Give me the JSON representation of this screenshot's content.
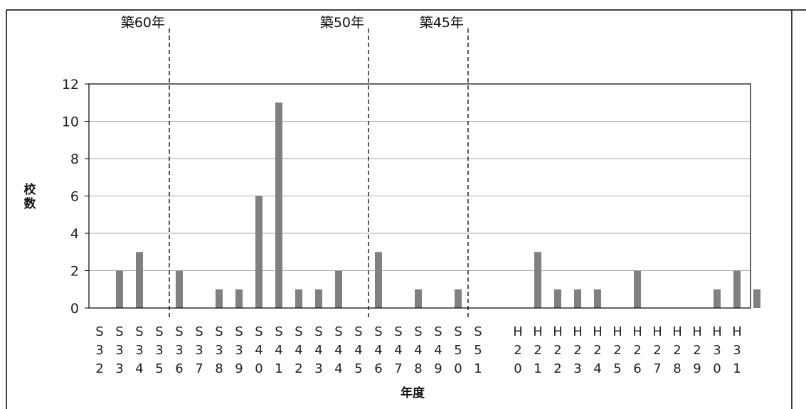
{
  "chart_data": {
    "type": "bar",
    "xlabel": "年度",
    "ylabel": "校数",
    "ylim": [
      0,
      12
    ],
    "yticks": [
      0,
      2,
      4,
      6,
      8,
      10,
      12
    ],
    "grid": true,
    "bar_color": "#808080",
    "categories": [
      [
        "S",
        "3",
        "2"
      ],
      [
        "S",
        "3",
        "3"
      ],
      [
        "S",
        "3",
        "4"
      ],
      [
        "S",
        "3",
        "5"
      ],
      [
        "S",
        "3",
        "6"
      ],
      [
        "S",
        "3",
        "7"
      ],
      [
        "S",
        "3",
        "8"
      ],
      [
        "S",
        "3",
        "9"
      ],
      [
        "S",
        "4",
        "0"
      ],
      [
        "S",
        "4",
        "1"
      ],
      [
        "S",
        "4",
        "2"
      ],
      [
        "S",
        "4",
        "3"
      ],
      [
        "S",
        "4",
        "4"
      ],
      [
        "S",
        "4",
        "5"
      ],
      [
        "S",
        "4",
        "6"
      ],
      [
        "S",
        "4",
        "7"
      ],
      [
        "S",
        "4",
        "8"
      ],
      [
        "S",
        "4",
        "9"
      ],
      [
        "S",
        "5",
        "0"
      ],
      [
        "S",
        "5",
        "1"
      ],
      null,
      [
        "H",
        "2",
        "0"
      ],
      [
        "H",
        "2",
        "1"
      ],
      [
        "H",
        "2",
        "2"
      ],
      [
        "H",
        "2",
        "3"
      ],
      [
        "H",
        "2",
        "4"
      ],
      [
        "H",
        "2",
        "5"
      ],
      [
        "H",
        "2",
        "6"
      ],
      [
        "H",
        "2",
        "7"
      ],
      [
        "H",
        "2",
        "8"
      ],
      [
        "H",
        "2",
        "9"
      ],
      [
        "H",
        "3",
        "0"
      ],
      [
        "H",
        "3",
        "1"
      ]
    ],
    "values": [
      2,
      3,
      0,
      2,
      0,
      1,
      1,
      6,
      11,
      1,
      1,
      2,
      0,
      3,
      0,
      1,
      0,
      1,
      0,
      null,
      null,
      3,
      1,
      1,
      1,
      0,
      2,
      0,
      0,
      0,
      1,
      2,
      1
    ],
    "annotations": [
      {
        "label": "築60年",
        "after_index": 2
      },
      {
        "label": "築50年",
        "after_index": 12
      },
      {
        "label": "築45年",
        "after_index": 17
      }
    ]
  }
}
